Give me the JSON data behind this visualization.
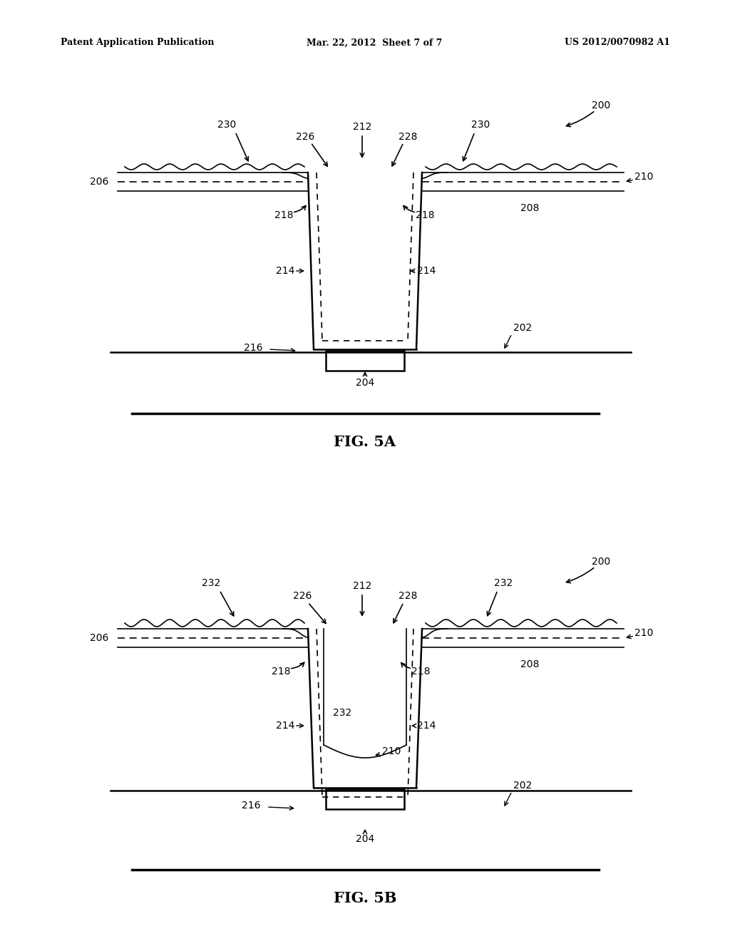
{
  "bg_color": "#ffffff",
  "line_color": "#000000",
  "header_left": "Patent Application Publication",
  "header_mid": "Mar. 22, 2012  Sheet 7 of 7",
  "header_right": "US 2012/0070982 A1",
  "fig_a_label": "FIG. 5A",
  "fig_b_label": "FIG. 5B"
}
